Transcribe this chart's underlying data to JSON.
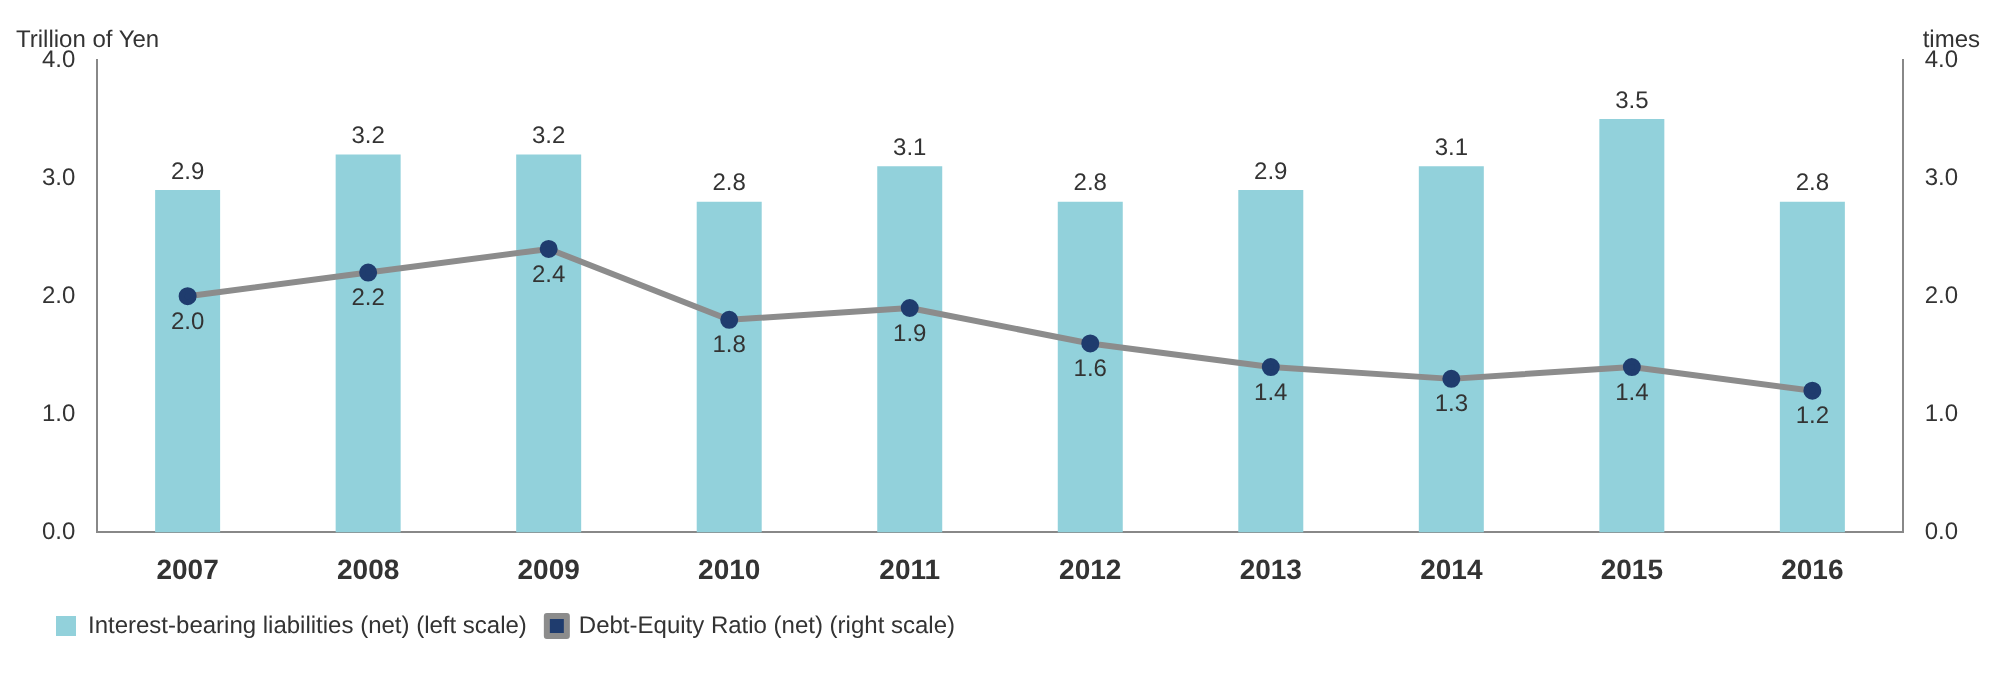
{
  "chart_data": {
    "type": "bar",
    "ylabel": "Trillion of Yen",
    "y2label": "times",
    "categories": [
      "2007",
      "2008",
      "2009",
      "2010",
      "2011",
      "2012",
      "2013",
      "2014",
      "2015",
      "2016"
    ],
    "series": [
      {
        "name": "Interest-bearing liabilities (net) (left scale)",
        "color": "#92d1db",
        "values": [
          2.9,
          3.2,
          3.2,
          2.8,
          3.1,
          2.8,
          2.9,
          3.1,
          3.5,
          2.8
        ]
      },
      {
        "name": "Debt-Equity Ratio (net) (right scale)",
        "type": "line",
        "axis": "y2",
        "color": "#8c8c8c",
        "values": [
          2.0,
          2.2,
          2.4,
          1.8,
          1.9,
          1.6,
          1.4,
          1.3,
          1.4,
          1.2
        ],
        "value_labels": [
          "2.0",
          "2.2",
          "2.4",
          "1.8",
          "1.9",
          "1.6",
          "1.4",
          "1.3",
          "1.4",
          "1.2"
        ]
      }
    ],
    "ylim": [
      0,
      4
    ],
    "yticks": [
      {
        "value": 0,
        "label": "0.0"
      },
      {
        "value": 1,
        "label": "1.0"
      },
      {
        "value": 2,
        "label": "2.0"
      },
      {
        "value": 3,
        "label": "3.0"
      },
      {
        "value": 4,
        "label": "4.0"
      }
    ],
    "y2lim": [
      0,
      4
    ],
    "y2ticks": [
      {
        "value": 0,
        "label": "0.0"
      },
      {
        "value": 1,
        "label": "1.0"
      },
      {
        "value": 2,
        "label": "2.0"
      },
      {
        "value": 3,
        "label": "3.0"
      },
      {
        "value": 4,
        "label": "4.0"
      }
    ],
    "data_labels": true,
    "legend": "bottom left",
    "grid": false,
    "marker": "circle"
  }
}
